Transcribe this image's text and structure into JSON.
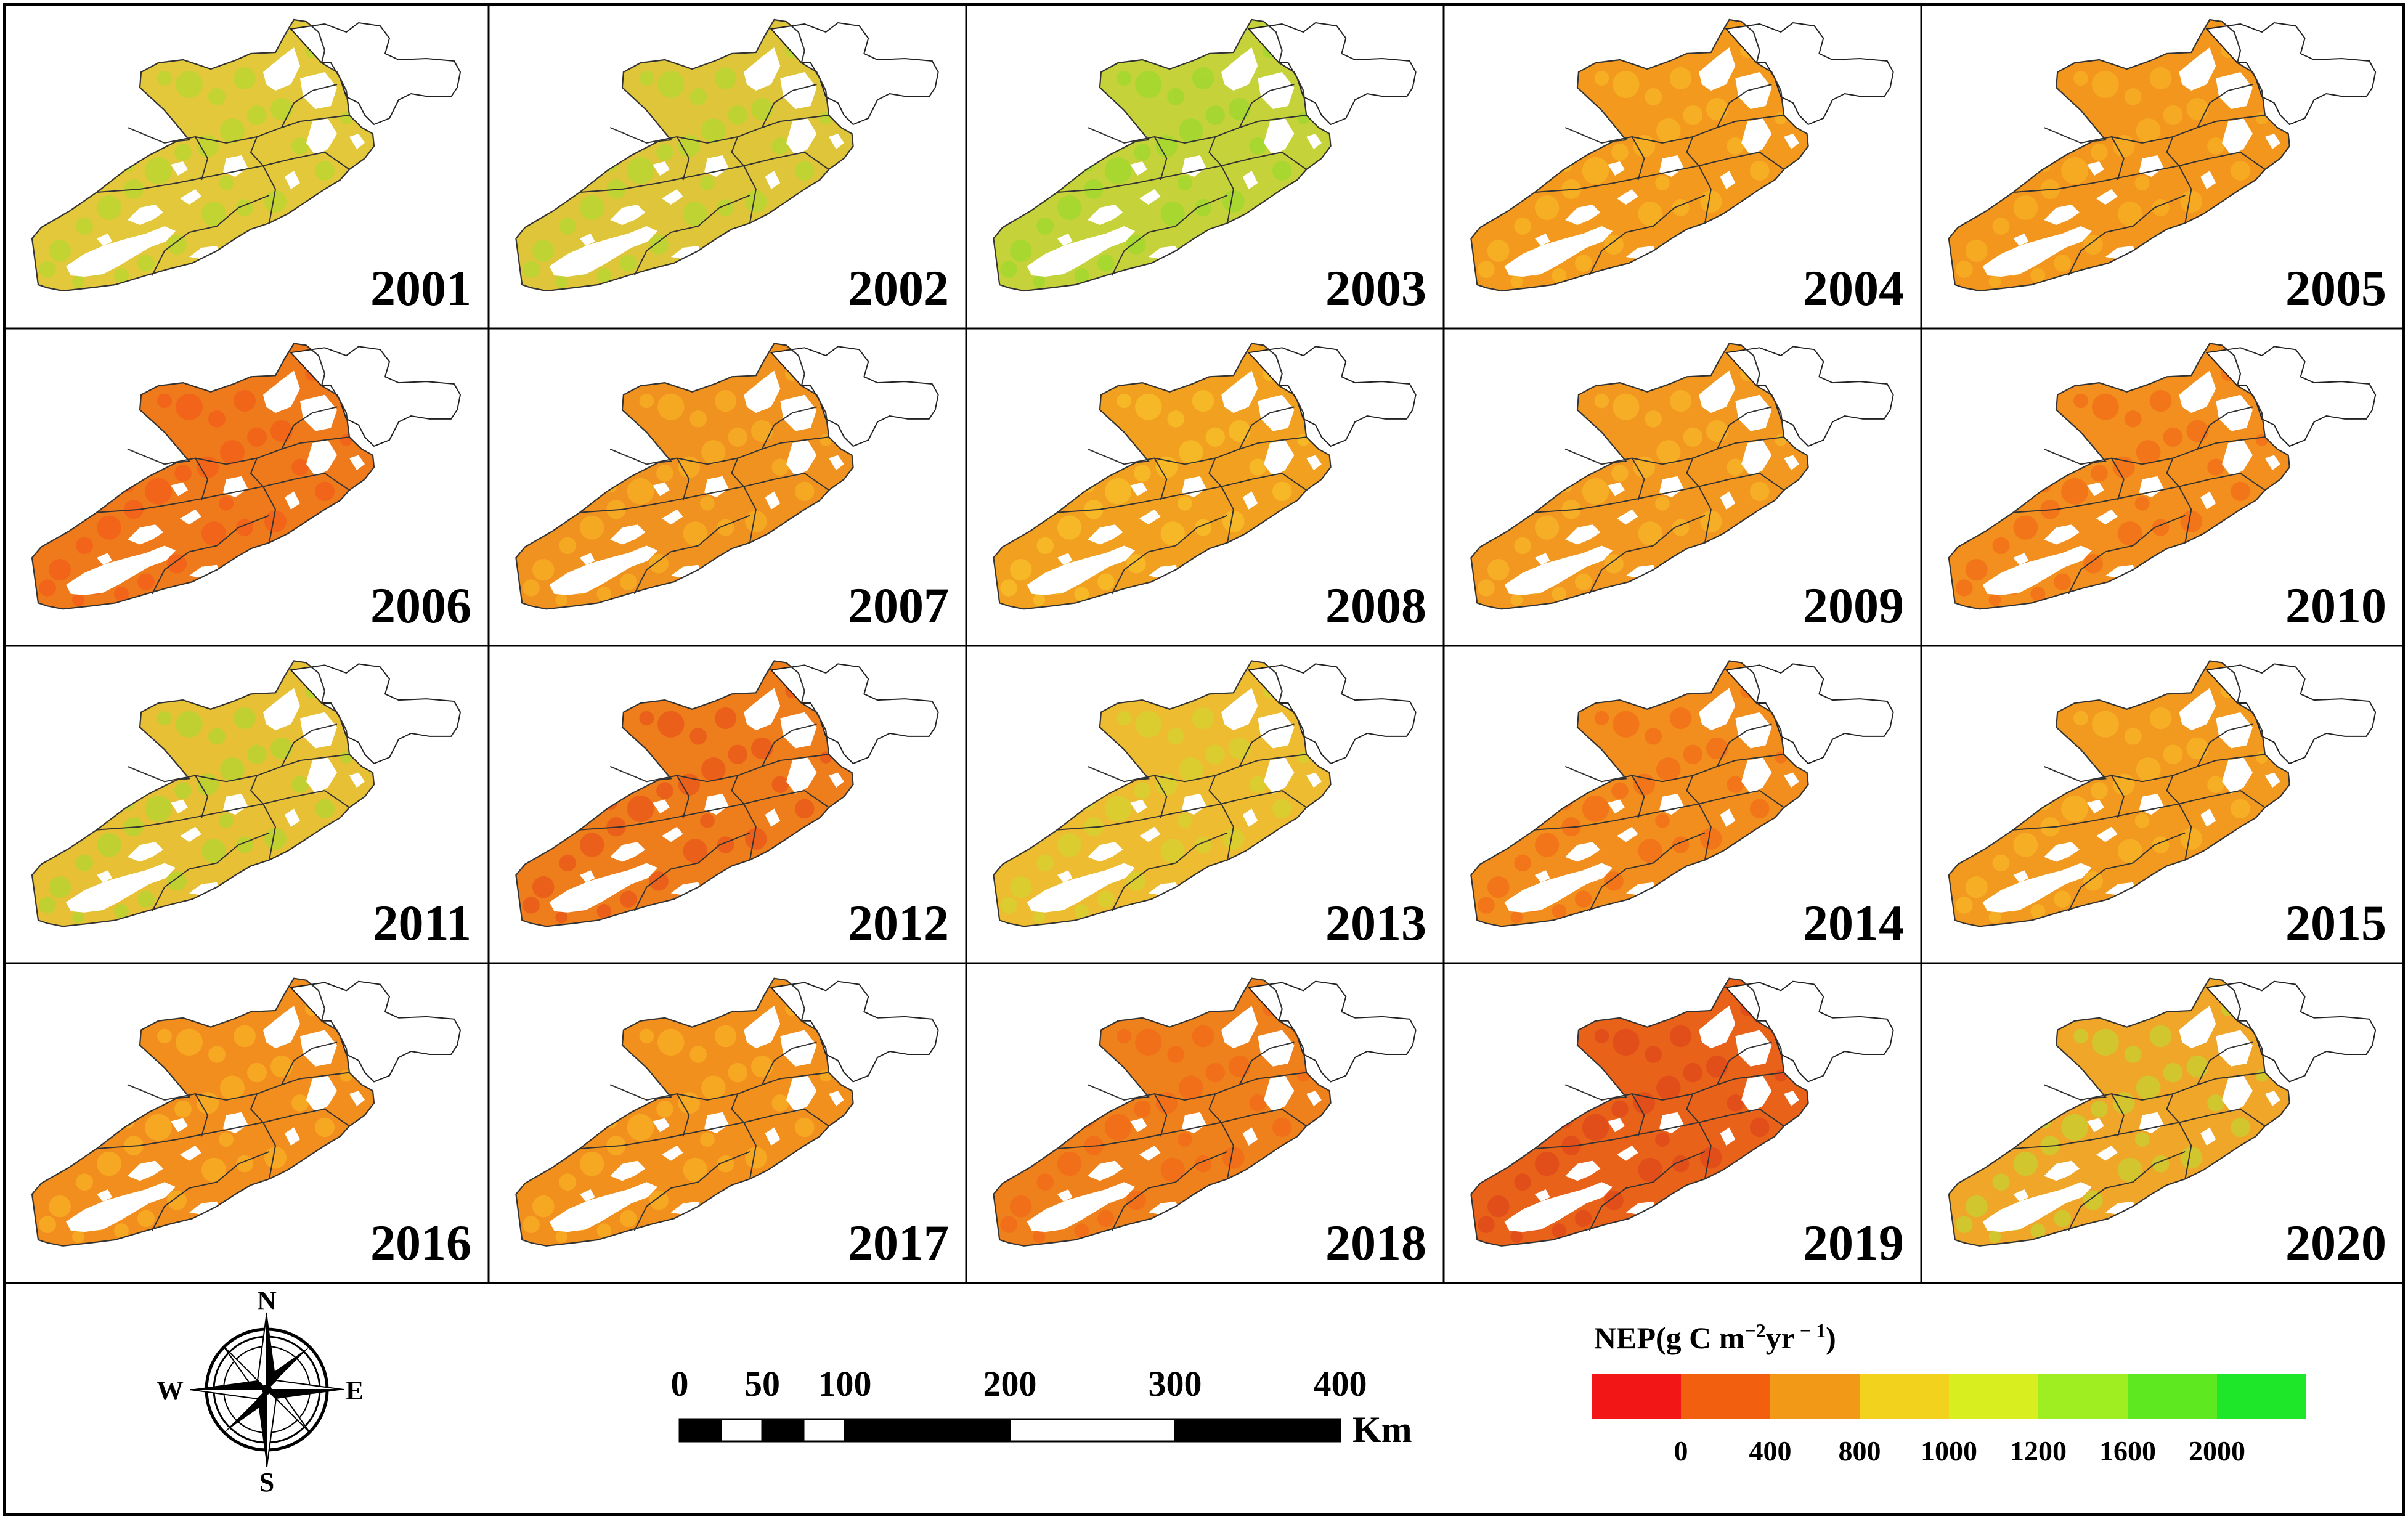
{
  "figure": {
    "years": [
      "2001",
      "2002",
      "2003",
      "2004",
      "2005",
      "2006",
      "2007",
      "2008",
      "2009",
      "2010",
      "2011",
      "2012",
      "2013",
      "2014",
      "2015",
      "2016",
      "2017",
      "2018",
      "2019",
      "2020"
    ],
    "panel_fill_colors": [
      "#e2c83a",
      "#dfc53a",
      "#c6d23a",
      "#f39a1e",
      "#f3961e",
      "#ee7a1c",
      "#f0921f",
      "#f2a020",
      "#f29820",
      "#f28f1e",
      "#e8c036",
      "#ee7d1c",
      "#eebc30",
      "#f28e1e",
      "#f29a20",
      "#f28e1e",
      "#f2901e",
      "#ee811c",
      "#e8621a",
      "#f0a628"
    ],
    "panel_speckle_colors": [
      "#b8d830",
      "#b4d830",
      "#9ed82e",
      "#f7b626",
      "#f7b024",
      "#f35e18",
      "#f7b026",
      "#f7c02a",
      "#f7b628",
      "#f36d18",
      "#b4d630",
      "#e8561a",
      "#d4d230",
      "#f36d18",
      "#f7b626",
      "#f7b026",
      "#f7b026",
      "#f36a18",
      "#e0481a",
      "#c8d030"
    ]
  },
  "compass": {
    "north": "N",
    "south": "S",
    "east": "E",
    "west": "W"
  },
  "scalebar": {
    "ticks": [
      "0",
      "50",
      "100",
      "200",
      "300",
      "400"
    ],
    "unit": "Km"
  },
  "legend": {
    "title_main": "NEP(g C m",
    "title_exp1": "−2",
    "title_mid": "yr",
    "title_exp2": " − 1",
    "title_end": ")",
    "colors": [
      "#f21616",
      "#f2600f",
      "#f29a18",
      "#f2d21c",
      "#d8ee1e",
      "#9eee22",
      "#5ee820",
      "#1ee628"
    ],
    "tick_labels": [
      "0",
      "400",
      "800",
      "1000",
      "1200",
      "1600",
      "2000"
    ]
  }
}
